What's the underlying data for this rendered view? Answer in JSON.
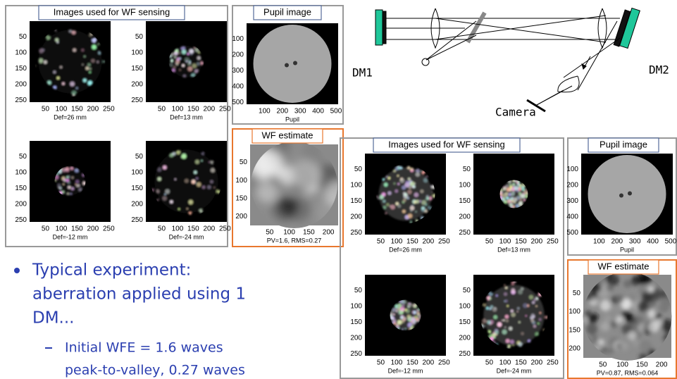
{
  "diagram": {
    "dm1": "DM1",
    "dm2": "DM2",
    "camera": "Camera"
  },
  "left": {
    "sensing": {
      "title": "Images used for WF sensing",
      "images": [
        {
          "yticks": [
            50,
            100,
            150,
            200,
            250
          ],
          "xticks": [
            50,
            100,
            150,
            200,
            250
          ],
          "caption": "Def=26 mm"
        },
        {
          "yticks": [
            50,
            100,
            150,
            200,
            250
          ],
          "xticks": [
            50,
            100,
            150,
            200,
            250
          ],
          "caption": "Def=13 mm"
        },
        {
          "yticks": [
            50,
            100,
            150,
            200,
            250
          ],
          "xticks": [
            50,
            100,
            150,
            200,
            250
          ],
          "caption": "Def=-12 mm"
        },
        {
          "yticks": [
            50,
            100,
            150,
            200,
            250
          ],
          "xticks": [
            50,
            100,
            150,
            200,
            250
          ],
          "caption": "Def=-24 mm"
        }
      ]
    },
    "pupil": {
      "title": "Pupil image",
      "yticks": [
        100,
        200,
        300,
        400,
        500
      ],
      "xticks": [
        100,
        200,
        300,
        400,
        500
      ],
      "caption": "Pupil"
    },
    "estimate": {
      "title": "WF estimate",
      "yticks": [
        50,
        100,
        150,
        200
      ],
      "xticks": [
        50,
        100,
        150,
        200
      ],
      "caption": "PV=1.6, RMS=0.27"
    }
  },
  "right": {
    "sensing": {
      "title": "Images used for WF sensing",
      "images": [
        {
          "yticks": [
            50,
            100,
            150,
            200,
            250
          ],
          "xticks": [
            50,
            100,
            150,
            200,
            250
          ],
          "caption": "Def=26 mm"
        },
        {
          "yticks": [
            50,
            100,
            150,
            200,
            250
          ],
          "xticks": [
            50,
            100,
            150,
            200,
            250
          ],
          "caption": "Def=13 mm"
        },
        {
          "yticks": [
            50,
            100,
            150,
            200,
            250
          ],
          "xticks": [
            50,
            100,
            150,
            200,
            250
          ],
          "caption": "Def=-12 mm"
        },
        {
          "yticks": [
            50,
            100,
            150,
            200,
            250
          ],
          "xticks": [
            50,
            100,
            150,
            200,
            250
          ],
          "caption": "Def=-24 mm"
        }
      ]
    },
    "pupil": {
      "title": "Pupil image",
      "yticks": [
        100,
        200,
        300,
        400,
        500
      ],
      "xticks": [
        100,
        200,
        300,
        400,
        500
      ],
      "caption": "Pupil"
    },
    "estimate": {
      "title": "WF estimate",
      "yticks": [
        50,
        100,
        150,
        200
      ],
      "xticks": [
        50,
        100,
        150,
        200
      ],
      "caption": "PV=0.87, RMS=0.064"
    }
  },
  "bullets": [
    {
      "lines": [
        "Typical experiment:",
        "aberration applied using 1",
        "DM..."
      ],
      "sub": [
        {
          "lines": [
            "Initial WFE = 1.6 waves",
            "peak-to-valley, 0.27 waves"
          ]
        }
      ]
    }
  ]
}
